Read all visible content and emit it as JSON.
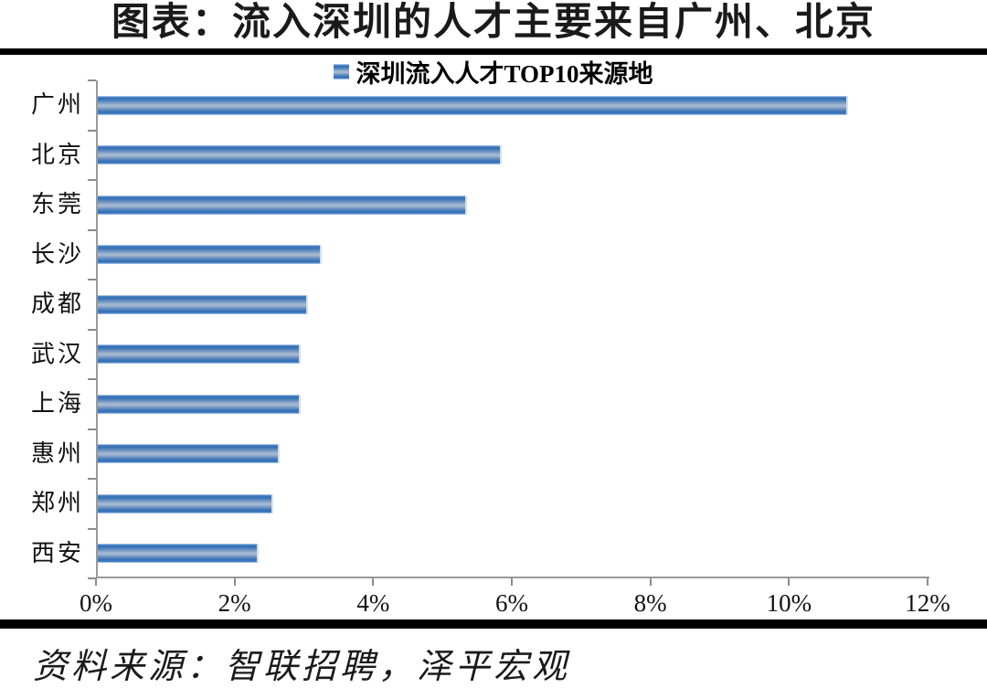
{
  "page": {
    "title": "图表：流入深圳的人才主要来自广州、北京"
  },
  "legend": {
    "label": "深圳流入人才TOP10来源地"
  },
  "source": {
    "text": "资料来源：智联招聘，泽平宏观"
  },
  "chart_data": {
    "type": "bar",
    "orientation": "horizontal",
    "title": "深圳流入人才TOP10来源地",
    "categories": [
      "广州",
      "北京",
      "东莞",
      "长沙",
      "成都",
      "武汉",
      "上海",
      "惠州",
      "郑州",
      "西安"
    ],
    "values": [
      10.8,
      5.8,
      5.3,
      3.2,
      3.0,
      2.9,
      2.9,
      2.6,
      2.5,
      2.3
    ],
    "unit": "%",
    "xlabel": "",
    "ylabel": "",
    "xlim": [
      0,
      12
    ],
    "x_ticks": [
      "0%",
      "2%",
      "4%",
      "6%",
      "8%",
      "10%",
      "12%"
    ],
    "x_tick_values": [
      0,
      2,
      4,
      6,
      8,
      10,
      12
    ],
    "grid": false,
    "legend_position": "top-center",
    "bar_color_dark": "#2F6EB6",
    "bar_color_light": "#A4B8D0",
    "axis_color": "#999999"
  }
}
